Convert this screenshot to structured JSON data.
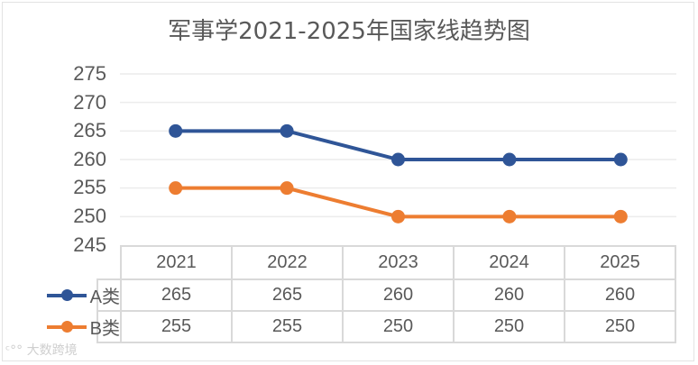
{
  "chart_data": {
    "type": "line",
    "title": "军事学2021-2025年国家线趋势图",
    "categories": [
      "2021",
      "2022",
      "2023",
      "2024",
      "2025"
    ],
    "series": [
      {
        "name": "A类",
        "color": "#2f5597",
        "values": [
          265,
          265,
          260,
          260,
          260
        ]
      },
      {
        "name": "B类",
        "color": "#ed7d31",
        "values": [
          255,
          255,
          250,
          250,
          250
        ]
      }
    ],
    "xlabel": "",
    "ylabel": "",
    "ylim": [
      245,
      275
    ],
    "yticks": [
      "275",
      "270",
      "265",
      "260",
      "255",
      "250",
      "245"
    ],
    "grid": true,
    "legend_position": "data-table",
    "data_table": true
  },
  "table": {
    "headers": [
      "2021",
      "2022",
      "2023",
      "2024",
      "2025"
    ],
    "rows": [
      {
        "label": "A类",
        "values": [
          "265",
          "265",
          "260",
          "260",
          "260"
        ]
      },
      {
        "label": "B类",
        "values": [
          "255",
          "255",
          "250",
          "250",
          "250"
        ]
      }
    ]
  },
  "watermark": "大数跨境"
}
